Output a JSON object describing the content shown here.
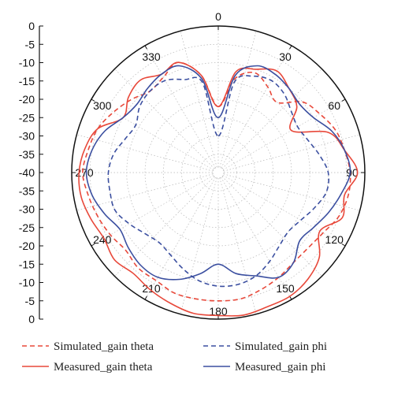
{
  "chart_data": {
    "type": "polar",
    "angle_ticks": [
      "0",
      "30",
      "60",
      "90",
      "120",
      "150",
      "180",
      "210",
      "240",
      "270",
      "300",
      "330"
    ],
    "radial_ticks": [
      "0",
      "-5",
      "-10",
      "-15",
      "-20",
      "-25",
      "-30",
      "-35",
      "-40",
      "-35",
      "-30",
      "-25",
      "-20",
      "-15",
      "-10",
      "-5",
      "0"
    ],
    "rlim": [
      -40,
      0
    ],
    "angular_direction": "clockwise",
    "zero_location": "top",
    "grid": true,
    "legend_position": "bottom",
    "colors": {
      "simulated_theta": "#e8483a",
      "measured_theta": "#e8483a",
      "simulated_phi": "#3b4fa0",
      "measured_phi": "#3b4fa0"
    },
    "angles": [
      0,
      10,
      20,
      30,
      40,
      50,
      60,
      70,
      80,
      90,
      100,
      110,
      120,
      130,
      140,
      150,
      160,
      170,
      180,
      190,
      200,
      210,
      220,
      230,
      240,
      250,
      260,
      270,
      280,
      290,
      300,
      310,
      320,
      330,
      340,
      350
    ],
    "series": [
      {
        "name": "Simulated_gain theta",
        "style": "dashed",
        "values": [
          -22,
          -14,
          -11,
          -13,
          -15,
          -10,
          -8,
          -6,
          -5,
          -4,
          -4,
          -5,
          -7,
          -8,
          -8,
          -7,
          -6,
          -5,
          -5,
          -5,
          -5,
          -6,
          -6,
          -7,
          -6,
          -5,
          -4,
          -3,
          -4,
          -5,
          -7,
          -9,
          -11,
          -10,
          -8,
          -13
        ]
      },
      {
        "name": "Measured_gain theta",
        "style": "solid",
        "values": [
          -22,
          -12,
          -10,
          -8,
          -10,
          -12,
          -17,
          -8,
          -5,
          -2,
          -5,
          -4,
          -8,
          -4,
          -2,
          -1,
          -1,
          -0.5,
          -1,
          -1,
          -2,
          -3,
          -4,
          -3,
          -4,
          -3,
          -2,
          -2,
          -3,
          -5,
          -10,
          -8,
          -7,
          -9,
          -8,
          -13
        ]
      },
      {
        "name": "Simulated_gain phi",
        "style": "dashed",
        "values": [
          -30,
          -15,
          -12,
          -11,
          -12,
          -14,
          -15,
          -14,
          -12,
          -10,
          -10,
          -12,
          -14,
          -15,
          -14,
          -12,
          -10,
          -9,
          -9,
          -10,
          -12,
          -14,
          -15,
          -14,
          -12,
          -10,
          -10,
          -10,
          -11,
          -13,
          -14,
          -12,
          -11,
          -11,
          -13,
          -15
        ]
      },
      {
        "name": "Measured_gain phi",
        "style": "solid",
        "values": [
          -25,
          -13,
          -9,
          -9,
          -10,
          -11,
          -10,
          -7,
          -5,
          -4,
          -6,
          -8,
          -10,
          -11,
          -8,
          -7,
          -10,
          -12,
          -15,
          -12,
          -9,
          -7,
          -7,
          -8,
          -9,
          -7,
          -5,
          -4,
          -5,
          -7,
          -10,
          -11,
          -10,
          -9,
          -9,
          -14
        ]
      }
    ]
  }
}
